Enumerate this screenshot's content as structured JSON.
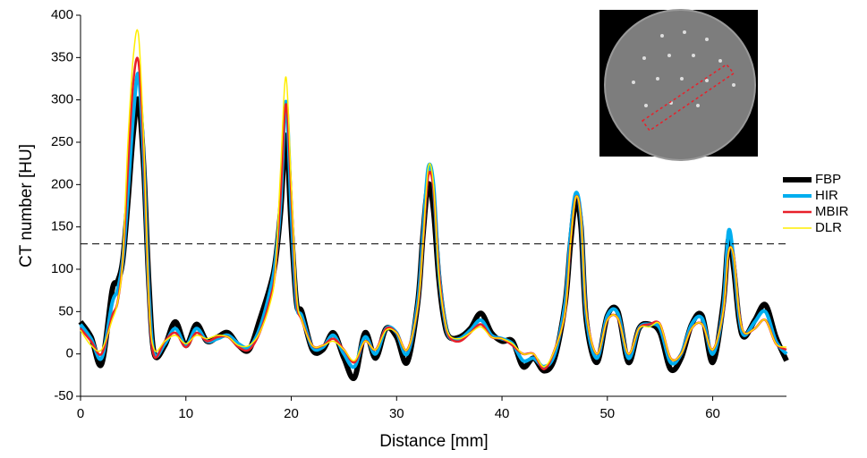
{
  "chart_data": {
    "type": "line",
    "x_label": "Distance [mm]",
    "y_label": "CT number [HU]",
    "x": [
      0,
      1,
      2,
      3,
      3.5,
      4,
      4.5,
      5,
      5.5,
      6,
      6.5,
      7,
      8,
      9,
      10,
      11,
      12,
      13,
      14,
      15,
      16,
      17,
      18,
      18.5,
      19,
      19.5,
      20,
      20.5,
      21,
      22,
      23,
      24,
      25,
      26,
      27,
      28,
      29,
      30,
      31,
      32,
      32.5,
      33,
      33.5,
      34,
      34.5,
      35,
      36,
      37,
      38,
      39,
      40,
      41,
      42,
      43,
      44,
      45,
      46,
      46.5,
      47,
      47.5,
      48,
      49,
      50,
      51,
      52,
      53,
      54,
      55,
      56,
      57,
      58,
      59,
      60,
      61,
      61.5,
      62,
      62.5,
      63,
      64,
      65,
      66,
      67
    ],
    "series": [
      {
        "name": "FBP",
        "color": "#000000",
        "line_width": 6,
        "values": [
          38,
          20,
          -12,
          75,
          85,
          110,
          180,
          260,
          300,
          220,
          80,
          0,
          10,
          38,
          10,
          35,
          15,
          20,
          25,
          10,
          5,
          40,
          80,
          110,
          170,
          258,
          150,
          60,
          50,
          5,
          5,
          25,
          -5,
          -28,
          25,
          -5,
          30,
          20,
          -10,
          60,
          140,
          200,
          170,
          90,
          40,
          20,
          20,
          30,
          48,
          25,
          15,
          15,
          -15,
          -5,
          -20,
          -5,
          60,
          130,
          180,
          150,
          40,
          -10,
          45,
          50,
          -10,
          30,
          35,
          25,
          -18,
          -5,
          35,
          45,
          -10,
          60,
          135,
          100,
          40,
          20,
          40,
          58,
          20,
          -8
        ]
      },
      {
        "name": "HIR",
        "color": "#00aeef",
        "line_width": 4,
        "values": [
          35,
          18,
          -5,
          60,
          75,
          110,
          190,
          280,
          330,
          230,
          70,
          0,
          12,
          30,
          10,
          30,
          15,
          18,
          22,
          12,
          8,
          30,
          75,
          110,
          180,
          298,
          170,
          60,
          45,
          8,
          8,
          22,
          0,
          -15,
          20,
          0,
          30,
          25,
          0,
          60,
          140,
          220,
          200,
          100,
          45,
          20,
          18,
          28,
          40,
          22,
          18,
          12,
          -8,
          -5,
          -15,
          0,
          60,
          140,
          190,
          160,
          45,
          -5,
          45,
          48,
          -5,
          30,
          35,
          30,
          -10,
          0,
          35,
          42,
          0,
          55,
          145,
          110,
          45,
          22,
          38,
          50,
          15,
          0
        ]
      },
      {
        "name": "MBIR",
        "color": "#e8202a",
        "line_width": 2.5,
        "values": [
          30,
          15,
          0,
          45,
          60,
          110,
          220,
          320,
          345,
          240,
          60,
          -3,
          15,
          25,
          8,
          25,
          15,
          20,
          20,
          8,
          5,
          25,
          65,
          100,
          190,
          295,
          190,
          65,
          40,
          10,
          10,
          18,
          5,
          -10,
          15,
          5,
          30,
          25,
          5,
          55,
          130,
          210,
          195,
          100,
          45,
          20,
          15,
          25,
          35,
          20,
          18,
          10,
          0,
          0,
          -18,
          5,
          50,
          130,
          185,
          160,
          50,
          0,
          40,
          42,
          0,
          30,
          35,
          35,
          -5,
          0,
          30,
          35,
          5,
          50,
          120,
          115,
          50,
          25,
          30,
          40,
          12,
          5
        ]
      },
      {
        "name": "DLR",
        "color": "#ffee00",
        "line_width": 1.5,
        "values": [
          28,
          10,
          5,
          40,
          60,
          110,
          250,
          350,
          377,
          250,
          60,
          5,
          15,
          22,
          12,
          22,
          18,
          22,
          20,
          10,
          10,
          25,
          60,
          100,
          220,
          327,
          200,
          70,
          40,
          10,
          10,
          15,
          5,
          -8,
          15,
          5,
          28,
          25,
          5,
          55,
          130,
          220,
          200,
          95,
          45,
          22,
          18,
          25,
          32,
          20,
          18,
          12,
          0,
          0,
          -15,
          5,
          50,
          130,
          185,
          160,
          50,
          0,
          40,
          42,
          0,
          30,
          32,
          35,
          -5,
          0,
          30,
          35,
          5,
          50,
          120,
          115,
          50,
          25,
          30,
          40,
          12,
          8
        ]
      }
    ],
    "threshold": 130,
    "xlim": [
      0,
      67
    ],
    "xticks": [
      0,
      10,
      20,
      30,
      40,
      50,
      60
    ],
    "ylim": [
      -50,
      400
    ],
    "yticks": [
      -50,
      0,
      50,
      100,
      150,
      200,
      250,
      300,
      350,
      400
    ]
  }
}
